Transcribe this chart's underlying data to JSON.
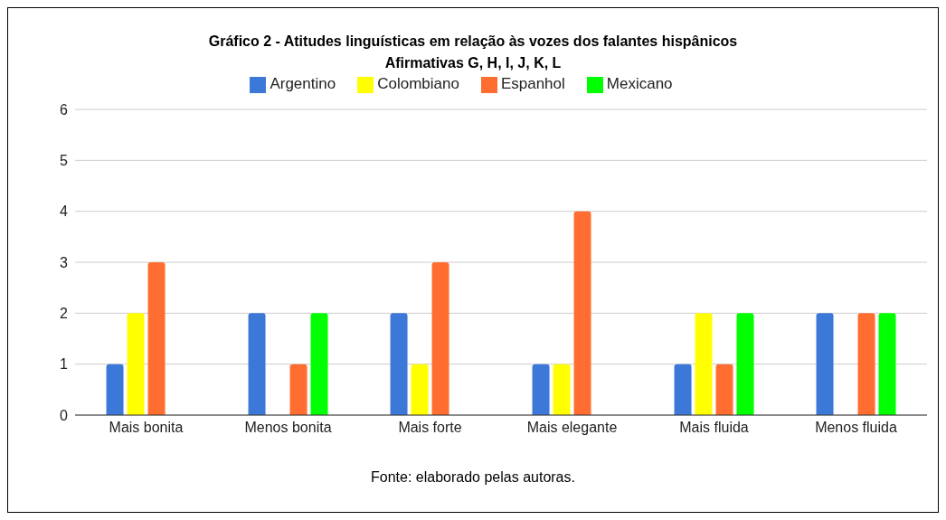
{
  "chart_data": {
    "type": "bar",
    "title": "Gráfico 2 - Atitudes linguísticas em relação às vozes dos falantes hispânicos",
    "subtitle": "Afirmativas G, H, I, J, K, L",
    "categories": [
      "Mais bonita",
      "Menos bonita",
      "Mais forte",
      "Mais elegante",
      "Mais fluida",
      "Menos fluida"
    ],
    "series": [
      {
        "name": "Argentino",
        "color": "#3c78d8",
        "values": [
          1,
          2,
          2,
          1,
          1,
          2
        ]
      },
      {
        "name": "Colombiano",
        "color": "#ffff00",
        "values": [
          2,
          0,
          1,
          1,
          2,
          0
        ]
      },
      {
        "name": "Espanhol",
        "color": "#ff6d31",
        "values": [
          3,
          1,
          3,
          4,
          1,
          2
        ]
      },
      {
        "name": "Mexicano",
        "color": "#00ff00",
        "values": [
          0,
          2,
          0,
          0,
          2,
          2
        ]
      }
    ],
    "ylim": [
      0,
      6
    ],
    "yticks": [
      0,
      1,
      2,
      3,
      4,
      5,
      6
    ],
    "grid": "y",
    "legend": "top",
    "annotations": [
      "Fonte: elaborado pelas autoras."
    ]
  }
}
